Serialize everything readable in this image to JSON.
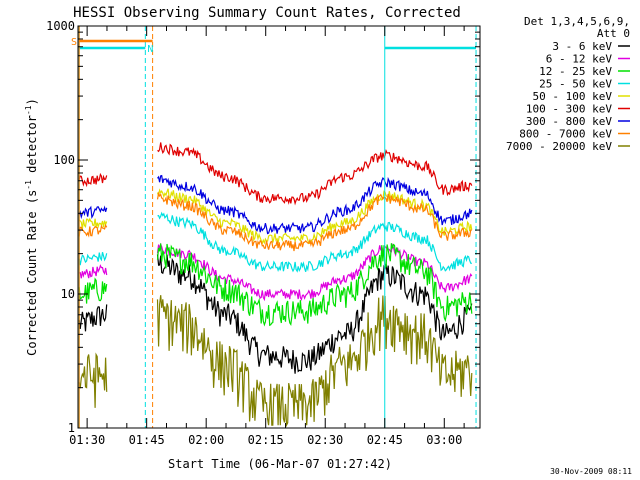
{
  "chart_data": {
    "type": "line",
    "title": "HESSI Observing Summary Count Rates, Corrected",
    "xlabel": "Start Time (06-Mar-07 01:27:42)",
    "ylabel_main": "Corrected Count Rate (s",
    "ylabel_sup1": "-1",
    "ylabel_mid": " detector",
    "ylabel_sup2": "-1",
    "ylabel_end": ")",
    "y_scale": "log",
    "ylim": [
      1,
      1000
    ],
    "xlim": [
      "01:27:42",
      "03:09:00"
    ],
    "x_ticks": [
      "01:30",
      "01:45",
      "02:00",
      "02:15",
      "02:30",
      "02:45",
      "03:00"
    ],
    "y_ticks": [
      "1",
      "10",
      "100",
      "1000"
    ],
    "legend_header": [
      "Det 1,3,4,5,6,9,",
      "Att 0"
    ],
    "legend_position": "right",
    "footer_date": "30-Nov-2009 08:11",
    "flag_labels": {
      "saa": "S",
      "night": "N"
    },
    "data_gaps": [
      [
        "01:35:00",
        "01:47:30"
      ]
    ],
    "night_intervals": [
      [
        "01:28:00",
        "01:44:40"
      ],
      [
        "02:45:00",
        "03:08:00"
      ]
    ],
    "saa_interval": [
      "01:28:00",
      "01:46:30"
    ],
    "series": [
      {
        "name": "3 - 6 keV",
        "color": "#000000",
        "x": [
          "01:28",
          "01:34",
          "01:48",
          "01:55",
          "02:05",
          "02:15",
          "02:25",
          "02:35",
          "02:45",
          "02:55",
          "03:00",
          "03:07"
        ],
        "y": [
          6,
          7,
          17,
          14,
          7,
          3.5,
          3.2,
          5,
          14,
          10,
          5,
          7
        ]
      },
      {
        "name": "6 - 12 keV",
        "color": "#e000e0",
        "x": [
          "01:28",
          "01:34",
          "01:48",
          "01:55",
          "02:05",
          "02:15",
          "02:25",
          "02:35",
          "02:45",
          "02:55",
          "03:00",
          "03:07"
        ],
        "y": [
          14,
          15,
          22,
          20,
          13,
          10,
          10,
          13,
          22,
          17,
          11,
          13
        ]
      },
      {
        "name": "12 - 25 keV",
        "color": "#00e000",
        "x": [
          "01:28",
          "01:34",
          "01:48",
          "01:55",
          "02:05",
          "02:15",
          "02:25",
          "02:35",
          "02:45",
          "02:55",
          "03:00",
          "03:07"
        ],
        "y": [
          10,
          11,
          20,
          18,
          11,
          7.5,
          7.5,
          10,
          20,
          15,
          8,
          9
        ]
      },
      {
        "name": "25 - 50 keV",
        "color": "#00e0e0",
        "x": [
          "01:28",
          "01:34",
          "01:48",
          "01:55",
          "02:05",
          "02:15",
          "02:25",
          "02:35",
          "02:45",
          "02:55",
          "03:00",
          "03:07"
        ],
        "y": [
          18,
          19,
          38,
          34,
          21,
          16,
          16,
          20,
          32,
          26,
          16,
          18
        ]
      },
      {
        "name": "50 - 100 keV",
        "color": "#e0e000",
        "x": [
          "01:28",
          "01:34",
          "01:48",
          "01:55",
          "02:05",
          "02:15",
          "02:25",
          "02:35",
          "02:45",
          "02:55",
          "03:00",
          "03:07"
        ],
        "y": [
          33,
          34,
          58,
          52,
          34,
          26,
          26,
          34,
          55,
          46,
          29,
          32
        ]
      },
      {
        "name": "100 - 300 keV",
        "color": "#e00000",
        "x": [
          "01:28",
          "01:34",
          "01:48",
          "01:55",
          "02:05",
          "02:15",
          "02:25",
          "02:35",
          "02:45",
          "02:55",
          "03:00",
          "03:07"
        ],
        "y": [
          70,
          72,
          125,
          115,
          75,
          52,
          52,
          75,
          108,
          90,
          60,
          65
        ]
      },
      {
        "name": "300 - 800 keV",
        "color": "#0000e0",
        "x": [
          "01:28",
          "01:34",
          "01:48",
          "01:55",
          "02:05",
          "02:15",
          "02:25",
          "02:35",
          "02:45",
          "02:55",
          "03:00",
          "03:07"
        ],
        "y": [
          40,
          42,
          72,
          64,
          42,
          31,
          31,
          42,
          68,
          56,
          35,
          40
        ]
      },
      {
        "name": "800 - 7000 keV",
        "color": "#ff8000",
        "x": [
          "01:28",
          "01:34",
          "01:48",
          "01:55",
          "02:05",
          "02:15",
          "02:25",
          "02:35",
          "02:45",
          "02:55",
          "03:00",
          "03:07"
        ],
        "y": [
          29,
          30,
          52,
          46,
          30,
          23,
          23,
          30,
          52,
          43,
          27,
          29
        ]
      },
      {
        "name": "7000 - 20000 keV",
        "color": "#808000",
        "x": [
          "01:28",
          "01:34",
          "01:48",
          "01:55",
          "02:05",
          "02:15",
          "02:25",
          "02:35",
          "02:45",
          "02:55",
          "03:00",
          "03:07"
        ],
        "y": [
          2.5,
          2.5,
          7,
          6,
          3,
          1.5,
          1.5,
          3,
          7,
          5,
          2.5,
          2.8
        ]
      }
    ]
  }
}
